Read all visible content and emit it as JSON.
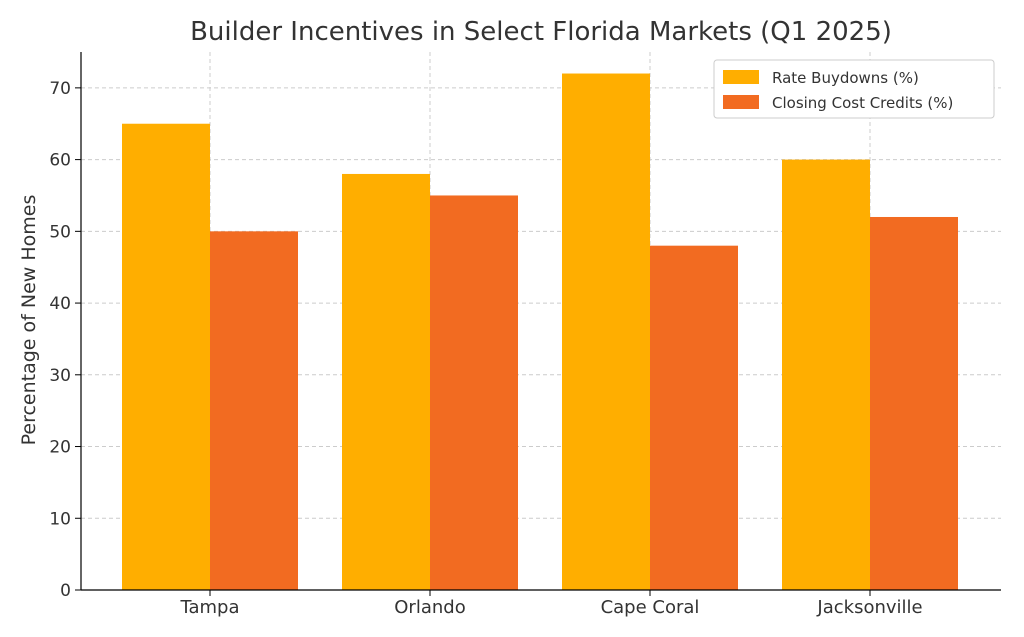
{
  "chart_data": {
    "type": "bar",
    "title": "Builder Incentives in Select Florida Markets (Q1 2025)",
    "xlabel": "",
    "ylabel": "Percentage of New Homes",
    "categories": [
      "Tampa",
      "Orlando",
      "Cape Coral",
      "Jacksonville"
    ],
    "series": [
      {
        "name": "Rate Buydowns (%)",
        "values": [
          65,
          58,
          72,
          60
        ],
        "color": "#FFAE00"
      },
      {
        "name": "Closing Cost Credits (%)",
        "values": [
          50,
          55,
          48,
          52
        ],
        "color": "#F26B21"
      }
    ],
    "ylim": [
      0,
      75
    ],
    "yticks": [
      0,
      10,
      20,
      30,
      40,
      50,
      60,
      70
    ],
    "grid": true,
    "legend_position": "top-right"
  },
  "colors": {
    "text": "#333333",
    "grid": "#cccccc",
    "axis": "#000000"
  }
}
